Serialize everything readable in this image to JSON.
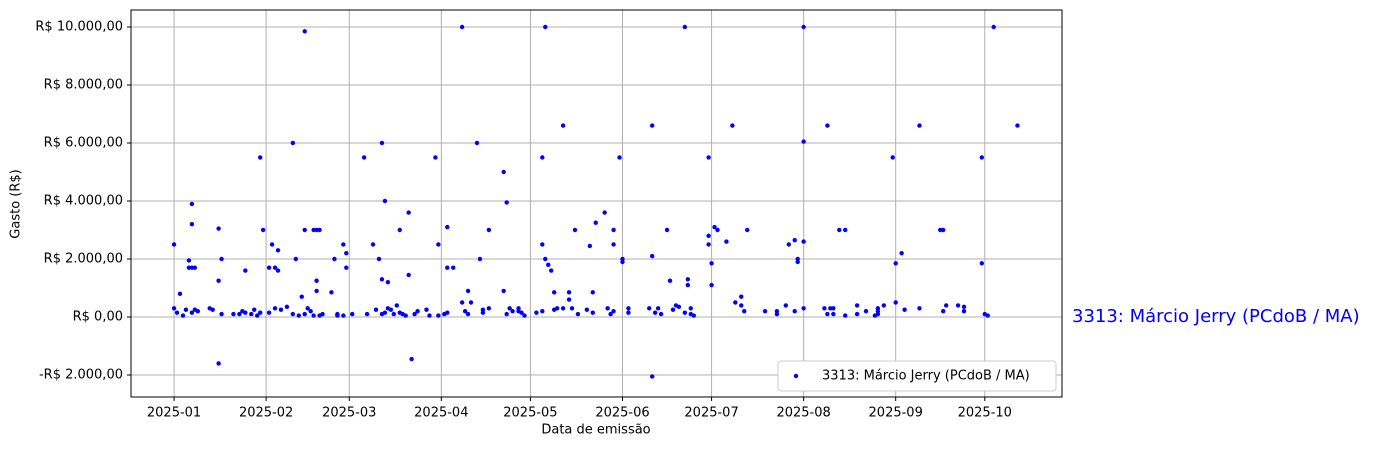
{
  "chart_data": {
    "type": "scatter",
    "xlabel": "Data de emissão",
    "ylabel": "Gasto (R$)",
    "annotation": "3313: Márcio Jerry (PCdoB / MA)",
    "xlim": [
      -14.5,
      299
    ],
    "ylim": [
      -2759,
      10586
    ],
    "xticks": [
      {
        "value": 0,
        "label": "2025-01"
      },
      {
        "value": 31,
        "label": "2025-02"
      },
      {
        "value": 59,
        "label": "2025-03"
      },
      {
        "value": 90,
        "label": "2025-04"
      },
      {
        "value": 120,
        "label": "2025-05"
      },
      {
        "value": 151,
        "label": "2025-06"
      },
      {
        "value": 181,
        "label": "2025-07"
      },
      {
        "value": 212,
        "label": "2025-08"
      },
      {
        "value": 243,
        "label": "2025-09"
      },
      {
        "value": 273,
        "label": "2025-10"
      }
    ],
    "yticks": [
      {
        "value": -2000,
        "label": "-R$ 2.000,00"
      },
      {
        "value": 0,
        "label": "R$ 0,00"
      },
      {
        "value": 2000,
        "label": "R$ 2.000,00"
      },
      {
        "value": 4000,
        "label": "R$ 4.000,00"
      },
      {
        "value": 6000,
        "label": "R$ 6.000,00"
      },
      {
        "value": 8000,
        "label": "R$ 8.000,00"
      },
      {
        "value": 10000,
        "label": "R$ 10.000,00"
      }
    ],
    "grid": true,
    "legend": "lower right",
    "series": [
      {
        "name": "3313: Márcio Jerry (PCdoB / MA)",
        "color": "#0000ff",
        "x": [
          0,
          0,
          2,
          1,
          3,
          4,
          5,
          5,
          6,
          7,
          6,
          6,
          6,
          7,
          8,
          12,
          13,
          15,
          15,
          15,
          16,
          16,
          20,
          22,
          23,
          24,
          24,
          26,
          27,
          28,
          29,
          30,
          29,
          32,
          32,
          33,
          34,
          34,
          35,
          35,
          36,
          38,
          40,
          40,
          41,
          42,
          43,
          44,
          44,
          44,
          45,
          46,
          47,
          47,
          48,
          48,
          48,
          49,
          49,
          50,
          53,
          54,
          55,
          55,
          57,
          57,
          58,
          58,
          60,
          64,
          65,
          67,
          68,
          69,
          70,
          70,
          70,
          71,
          71,
          72,
          72,
          73,
          74,
          75,
          76,
          76,
          77,
          78,
          79,
          79,
          80,
          81,
          82,
          85,
          86,
          88,
          89,
          89,
          91,
          92,
          92,
          92,
          94,
          97,
          97,
          98,
          99,
          99,
          100,
          102,
          103,
          104,
          104,
          106,
          106,
          111,
          111,
          112,
          112,
          113,
          114,
          116,
          116,
          117,
          118,
          122,
          124,
          124,
          124,
          125,
          125,
          126,
          127,
          128,
          128,
          129,
          131,
          131,
          133,
          133,
          134,
          135,
          136,
          139,
          140,
          141,
          141,
          142,
          145,
          146,
          147,
          148,
          148,
          148,
          150,
          151,
          151,
          153,
          153,
          160,
          161,
          161,
          161,
          162,
          163,
          164,
          166,
          167,
          168,
          169,
          170,
          172,
          172,
          173,
          173,
          174,
          174,
          175,
          180,
          180,
          180,
          181,
          181,
          182,
          183,
          186,
          188,
          189,
          191,
          191,
          192,
          193,
          199,
          203,
          203,
          206,
          207,
          209,
          209,
          210,
          210,
          212,
          212,
          212,
          212,
          219,
          220,
          220,
          221,
          222,
          222,
          224,
          226,
          226,
          230,
          230,
          233,
          236,
          237,
          237,
          237,
          239,
          242,
          243,
          243,
          245,
          246,
          251,
          251,
          258,
          259,
          259,
          260,
          264,
          266,
          266,
          272,
          272,
          273,
          274,
          276,
          284
        ],
        "values": [
          2500,
          300,
          800,
          150,
          50,
          250,
          1700,
          1950,
          1700,
          1700,
          3900,
          3200,
          150,
          250,
          200,
          300,
          250,
          3050,
          1250,
          -1600,
          2000,
          100,
          100,
          100,
          200,
          150,
          1600,
          100,
          250,
          50,
          5500,
          3000,
          150,
          150,
          1700,
          2500,
          300,
          1700,
          1600,
          2300,
          250,
          350,
          6000,
          100,
          2000,
          50,
          700,
          9850,
          3000,
          100,
          300,
          200,
          50,
          3000,
          3000,
          1250,
          900,
          50,
          3000,
          100,
          850,
          2000,
          50,
          100,
          2500,
          50,
          1700,
          2200,
          100,
          5500,
          100,
          2500,
          250,
          2000,
          1300,
          6000,
          100,
          150,
          4000,
          1200,
          300,
          250,
          100,
          400,
          3000,
          150,
          100,
          50,
          3600,
          1450,
          -1450,
          100,
          200,
          250,
          50,
          5500,
          2500,
          50,
          100,
          150,
          1700,
          3100,
          1700,
          10000,
          500,
          200,
          900,
          100,
          500,
          6000,
          2000,
          250,
          150,
          3000,
          300,
          5000,
          900,
          3950,
          100,
          300,
          200,
          300,
          200,
          150,
          50,
          150,
          200,
          5500,
          2500,
          2000,
          10000,
          1800,
          1600,
          250,
          850,
          300,
          6600,
          300,
          850,
          600,
          300,
          3000,
          100,
          250,
          2450,
          850,
          150,
          3250,
          3600,
          300,
          100,
          3000,
          2500,
          200,
          5500,
          2000,
          1900,
          300,
          150,
          300,
          6600,
          2100,
          -2050,
          150,
          300,
          100,
          3000,
          1250,
          250,
          400,
          350,
          10000,
          150,
          1300,
          1100,
          300,
          100,
          50,
          2500,
          2800,
          5500,
          1850,
          1100,
          3100,
          3000,
          2600,
          6600,
          500,
          700,
          400,
          200,
          3000,
          200,
          200,
          100,
          400,
          2500,
          200,
          2650,
          1900,
          2000,
          300,
          6050,
          2600,
          10000,
          300,
          6600,
          100,
          300,
          300,
          100,
          3000,
          3000,
          50,
          400,
          100,
          200,
          50,
          100,
          300,
          200,
          400,
          5500,
          1850,
          500,
          2200,
          250,
          6600,
          300,
          3000,
          3000,
          200,
          400,
          400,
          350,
          200,
          5500,
          1850,
          100,
          50,
          10000,
          6600
        ]
      }
    ]
  }
}
